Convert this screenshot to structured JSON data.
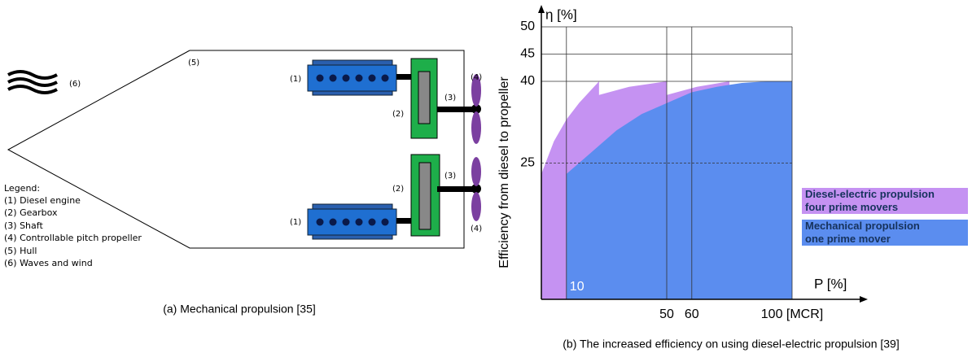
{
  "diagram": {
    "hull_label": "(5)",
    "waves_label": "(6)",
    "top": {
      "engine": "(1)",
      "gearbox": "(2)",
      "shaft": "(3)",
      "propeller": "(4)"
    },
    "bottom": {
      "engine": "(1)",
      "gearbox": "(2)",
      "shaft": "(3)",
      "propeller": "(4)"
    },
    "legend": {
      "title": "Legend:",
      "items": [
        "(1) Diesel engine",
        "(2) Gearbox",
        "(3) Shaft",
        "(4) Controllable pitch propeller",
        "(5) Hull",
        "(6) Waves and wind"
      ]
    },
    "caption": "(a) Mechanical propulsion [35]"
  },
  "chart_data": {
    "type": "area",
    "y_label": "η [%]",
    "y_axis_title": "Efficiency from diesel to propeller",
    "x_label": "P [%]",
    "caption": "(b) The increased efficiency on using diesel-electric propulsion [39]",
    "xlim": [
      0,
      100
    ],
    "ylim": [
      0,
      50
    ],
    "xticks": [
      10,
      50,
      60,
      {
        "value": 100,
        "label": "100 [MCR]"
      }
    ],
    "yticks": [
      25,
      40,
      45,
      50
    ],
    "grid": true,
    "series": [
      {
        "name": "Diesel-electric propulsion\nfour prime movers",
        "color": "#c592f2",
        "x": [
          0,
          5,
          10,
          15,
          23,
          23,
          35,
          50,
          50,
          62,
          75,
          75,
          100
        ],
        "values": [
          23,
          29,
          33,
          36,
          40,
          37.5,
          39,
          40,
          37.5,
          39,
          40,
          39,
          40
        ]
      },
      {
        "name": "Mechanical propulsion\none prime mover",
        "color": "#5b8def",
        "x": [
          10,
          20,
          30,
          40,
          50,
          60,
          70,
          80,
          90,
          100
        ],
        "values": [
          23,
          27,
          31,
          34,
          36,
          38,
          39,
          39.7,
          40,
          40
        ]
      }
    ]
  }
}
